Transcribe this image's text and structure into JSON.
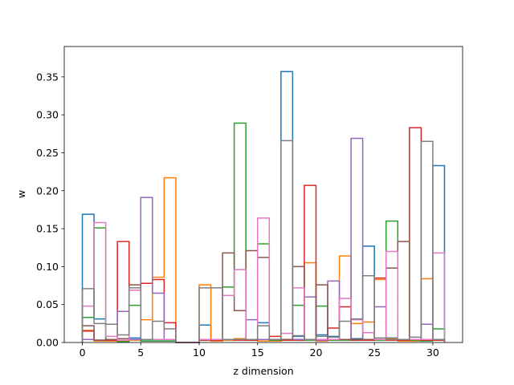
{
  "chart_data": {
    "type": "step",
    "xlabel": "z dimension",
    "ylabel": "w",
    "xlim": [
      -1.55,
      32.55
    ],
    "ylim": [
      0,
      0.39
    ],
    "xticks": [
      0,
      5,
      10,
      15,
      20,
      25,
      30
    ],
    "yticks": [
      0.0,
      0.05,
      0.1,
      0.15,
      0.2,
      0.25,
      0.3,
      0.35
    ],
    "bin_start": 0,
    "bin_width": 1,
    "series": [
      {
        "color": "#1f77b4",
        "values": [
          0.169,
          0.031,
          0.004,
          0.002,
          0.006,
          0.002,
          0.002,
          0.002,
          0.0,
          0.0,
          0.023,
          0.004,
          0.003,
          0.005,
          0.004,
          0.026,
          0.003,
          0.357,
          0.008,
          0.004,
          0.01,
          0.008,
          0.004,
          0.005,
          0.127,
          0.004,
          0.006,
          0.003,
          0.002,
          0.003,
          0.233
        ]
      },
      {
        "color": "#ff7f0e",
        "values": [
          0.016,
          0.002,
          0.002,
          0.002,
          0.003,
          0.03,
          0.086,
          0.217,
          0.0,
          0.0,
          0.076,
          0.002,
          0.003,
          0.005,
          0.003,
          0.002,
          0.002,
          0.003,
          0.003,
          0.105,
          0.002,
          0.003,
          0.114,
          0.025,
          0.027,
          0.083,
          0.005,
          0.002,
          0.002,
          0.084,
          0.003
        ]
      },
      {
        "color": "#2ca02c",
        "values": [
          0.033,
          0.151,
          0.003,
          0.001,
          0.049,
          0.002,
          0.002,
          0.002,
          0.0,
          0.0,
          0.003,
          0.003,
          0.073,
          0.289,
          0.003,
          0.13,
          0.003,
          0.004,
          0.049,
          0.003,
          0.048,
          0.003,
          0.003,
          0.003,
          0.003,
          0.003,
          0.16,
          0.003,
          0.003,
          0.002,
          0.018
        ]
      },
      {
        "color": "#d62728",
        "values": [
          0.015,
          0.003,
          0.003,
          0.133,
          0.004,
          0.078,
          0.083,
          0.026,
          0.0,
          0.0,
          0.003,
          0.003,
          0.004,
          0.003,
          0.003,
          0.004,
          0.008,
          0.003,
          0.003,
          0.207,
          0.003,
          0.019,
          0.047,
          0.003,
          0.003,
          0.085,
          0.003,
          0.003,
          0.283,
          0.003,
          0.003
        ]
      },
      {
        "color": "#9467bd",
        "values": [
          0.004,
          0.003,
          0.004,
          0.041,
          0.004,
          0.191,
          0.065,
          0.004,
          0.0,
          0.0,
          0.004,
          0.004,
          0.004,
          0.004,
          0.03,
          0.004,
          0.004,
          0.004,
          0.004,
          0.06,
          0.003,
          0.081,
          0.004,
          0.269,
          0.004,
          0.047,
          0.004,
          0.004,
          0.004,
          0.024,
          0.004
        ]
      },
      {
        "color": "#8c564b",
        "values": [
          0.022,
          0.003,
          0.004,
          0.005,
          0.076,
          0.004,
          0.004,
          0.004,
          0.0,
          0.0,
          0.004,
          0.004,
          0.118,
          0.042,
          0.121,
          0.112,
          0.004,
          0.004,
          0.1,
          0.004,
          0.076,
          0.004,
          0.004,
          0.004,
          0.004,
          0.004,
          0.098,
          0.133,
          0.004,
          0.004,
          0.004
        ]
      },
      {
        "color": "#e377c2",
        "values": [
          0.048,
          0.158,
          0.008,
          0.003,
          0.069,
          0.004,
          0.004,
          0.004,
          0.0,
          0.0,
          0.004,
          0.004,
          0.062,
          0.096,
          0.004,
          0.164,
          0.004,
          0.012,
          0.072,
          0.004,
          0.004,
          0.004,
          0.058,
          0.03,
          0.013,
          0.004,
          0.12,
          0.004,
          0.004,
          0.004,
          0.118
        ]
      },
      {
        "color": "#7f7f7f",
        "values": [
          0.071,
          0.025,
          0.024,
          0.01,
          0.072,
          0.004,
          0.028,
          0.018,
          0.0,
          0.0,
          0.072,
          0.072,
          0.004,
          0.004,
          0.004,
          0.022,
          0.004,
          0.266,
          0.009,
          0.004,
          0.008,
          0.007,
          0.028,
          0.031,
          0.088,
          0.006,
          0.004,
          0.004,
          0.007,
          0.265,
          0.004
        ]
      }
    ]
  }
}
